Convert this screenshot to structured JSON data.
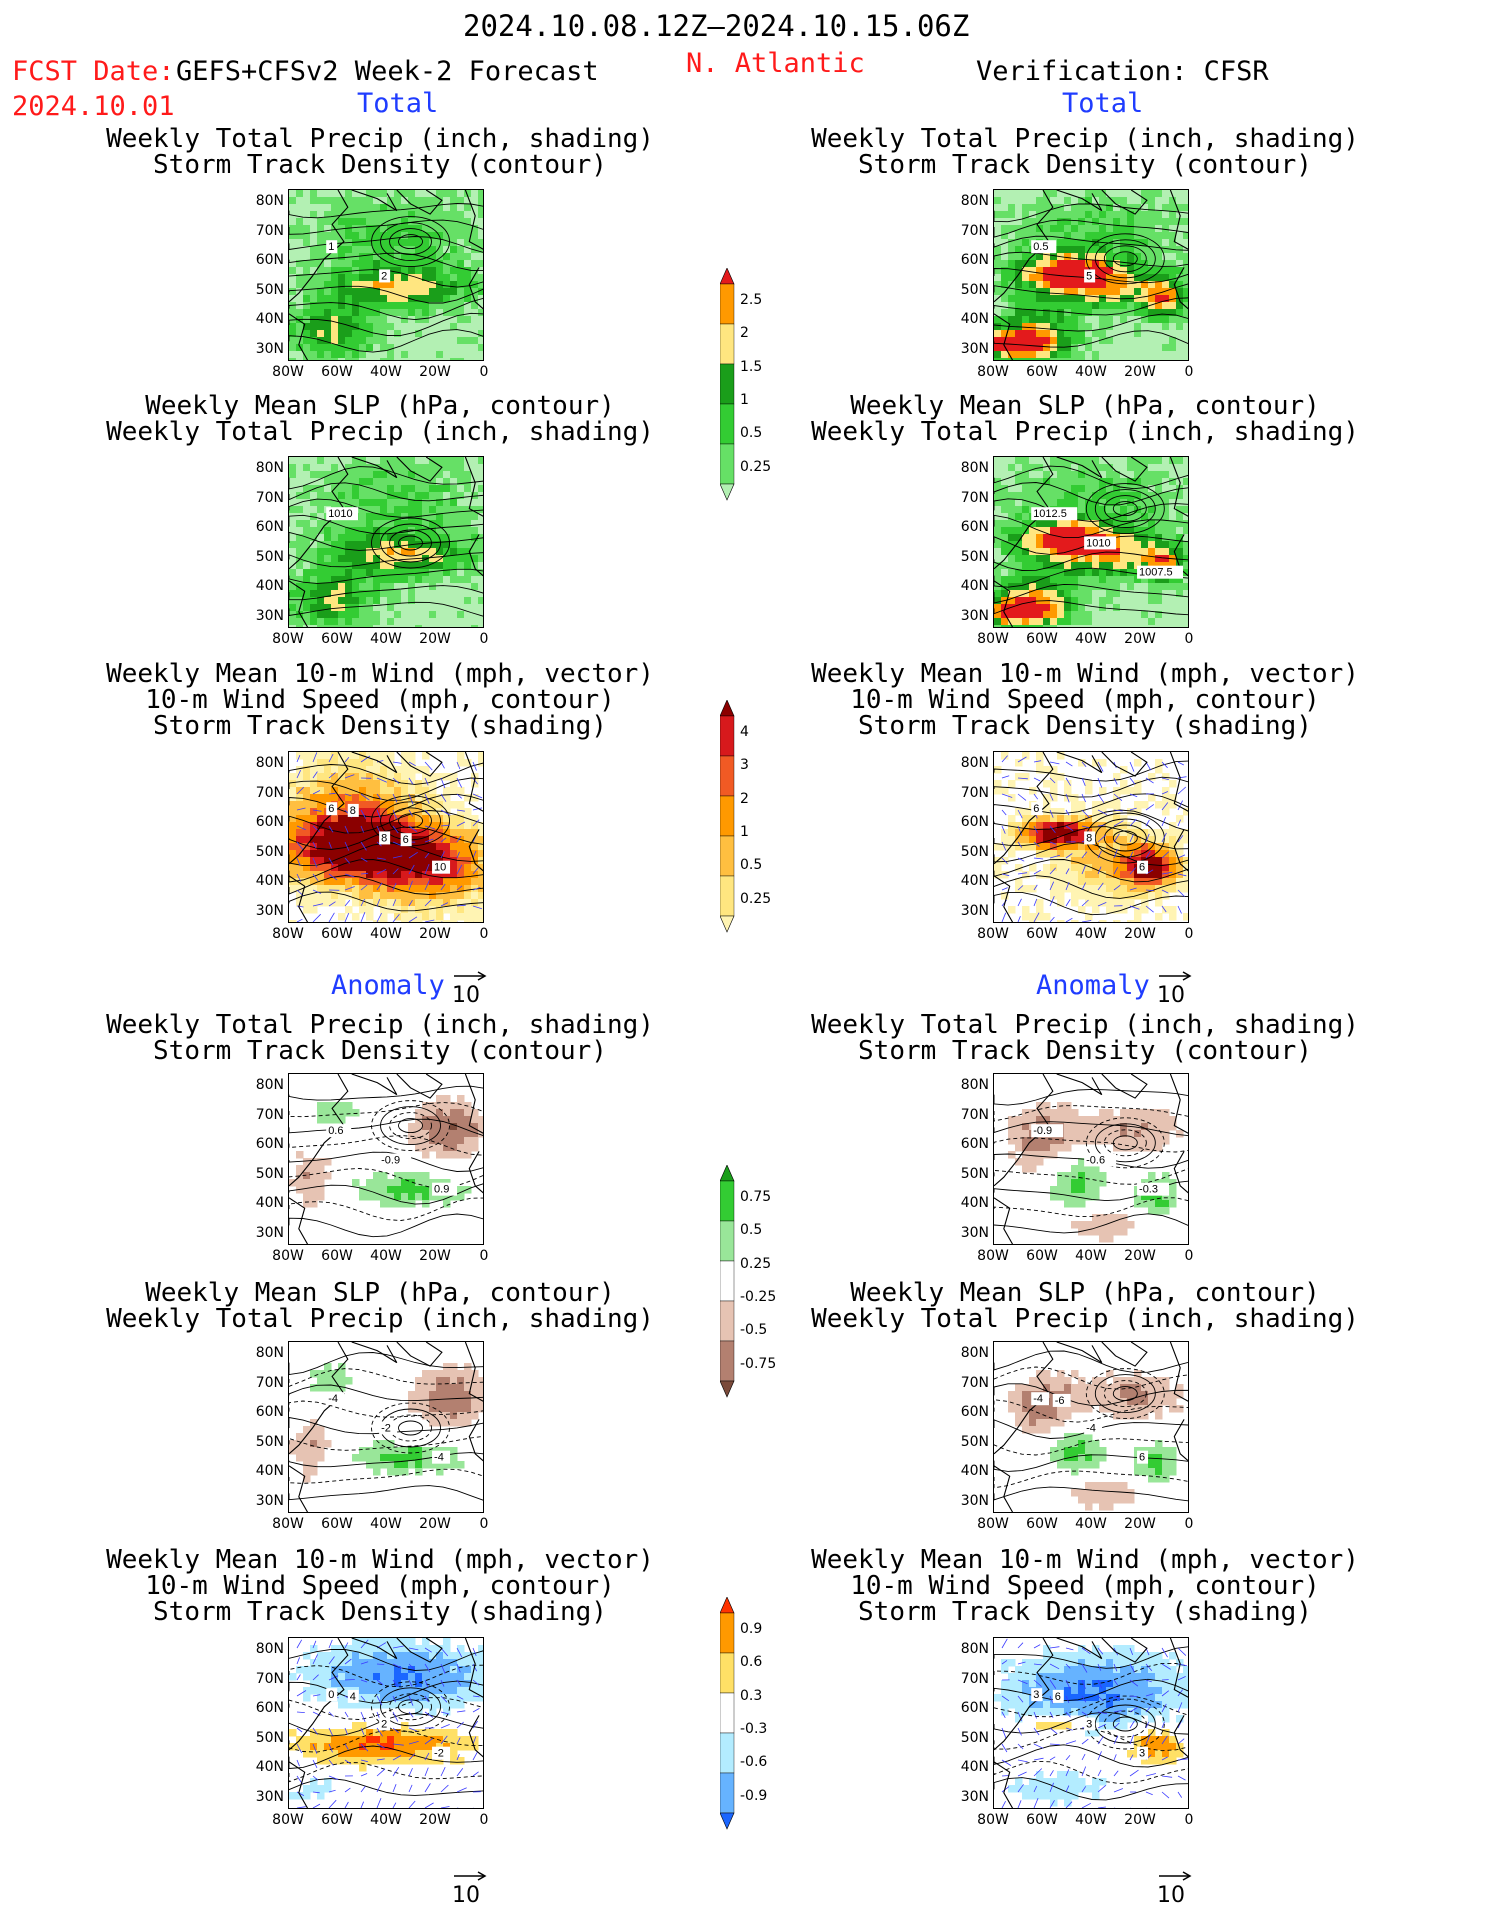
{
  "header": {
    "period": "2024.10.08.12Z–2024.10.15.06Z",
    "fcst_date_label": "FCST Date:",
    "fcst_date": "2024.10.01",
    "forecast_name": "GEFS+CFSv2 Week-2 Forecast",
    "region": "N. Atlantic",
    "verification": "Verification: CFSR"
  },
  "sections": {
    "total": "Total",
    "anomaly": "Anomaly"
  },
  "panel_titles": {
    "precip_track": [
      "Weekly Total Precip (inch, shading)",
      "Storm Track Density (contour)"
    ],
    "slp_precip": [
      "Weekly Mean SLP (hPa, contour)",
      "Weekly Total Precip (inch, shading)"
    ],
    "wind_track": [
      "Weekly Mean 10-m Wind (mph, vector)",
      "10-m Wind Speed (mph, contour)",
      "Storm Track Density (shading)"
    ]
  },
  "axes": {
    "lat_labels": [
      "80N",
      "70N",
      "60N",
      "50N",
      "40N",
      "30N"
    ],
    "lon_labels": [
      "80W",
      "60W",
      "40W",
      "20W",
      "0"
    ]
  },
  "vector_scale": "10",
  "contour_labels": {
    "fc_precip_track": [
      "1",
      "2"
    ],
    "ob_precip_track": [
      "0.5",
      "5"
    ],
    "fc_slp": [
      "1010"
    ],
    "ob_slp": [
      "1012.5",
      "1010",
      "1007.5"
    ],
    "fc_wind": [
      "6",
      "8",
      "10",
      "8",
      "6"
    ],
    "ob_wind": [
      "6",
      "8",
      "6"
    ],
    "fc_anom_track": [
      "0.6",
      "-0.9",
      "0.9"
    ],
    "ob_anom_track": [
      "-0.9",
      "-0.6",
      "-0.3"
    ],
    "fc_anom_slp": [
      "-4",
      "-2",
      "-4"
    ],
    "ob_anom_slp": [
      "-4",
      "-4",
      "6",
      "-6"
    ],
    "fc_anom_wind": [
      "0",
      "2",
      "-2",
      "4"
    ],
    "ob_anom_wind": [
      "3",
      "3",
      "3",
      "6"
    ]
  },
  "colorbars": {
    "precip_total": {
      "labels": [
        "2.5",
        "2",
        "1.5",
        "1",
        "0.5",
        "0.25"
      ],
      "colors": [
        "#e31a1c",
        "#ff9900",
        "#ffe680",
        "#1a9e1a",
        "#33cc33",
        "#66e066",
        "#b3f0b3"
      ]
    },
    "track_total": {
      "labels": [
        "4",
        "3",
        "2",
        "1",
        "0.5",
        "0.25"
      ],
      "colors": [
        "#8b0000",
        "#d7191c",
        "#f15a24",
        "#ff9900",
        "#ffbf40",
        "#ffe680",
        "#fff4b3"
      ]
    },
    "precip_anom": {
      "labels": [
        "0.75",
        "0.5",
        "0.25",
        "-0.25",
        "-0.5",
        "-0.75"
      ],
      "colors": [
        "#1a9e1a",
        "#33cc33",
        "#99e699",
        "#ffffff",
        "#e6c3b3",
        "#b38070",
        "#7a4a3a"
      ]
    },
    "track_anom": {
      "labels": [
        "0.9",
        "0.6",
        "0.3",
        "-0.3",
        "-0.6",
        "-0.9"
      ],
      "colors": [
        "#ff3300",
        "#ff9900",
        "#ffe066",
        "#ffffff",
        "#b3ecff",
        "#66b3ff",
        "#1a66ff"
      ]
    }
  }
}
